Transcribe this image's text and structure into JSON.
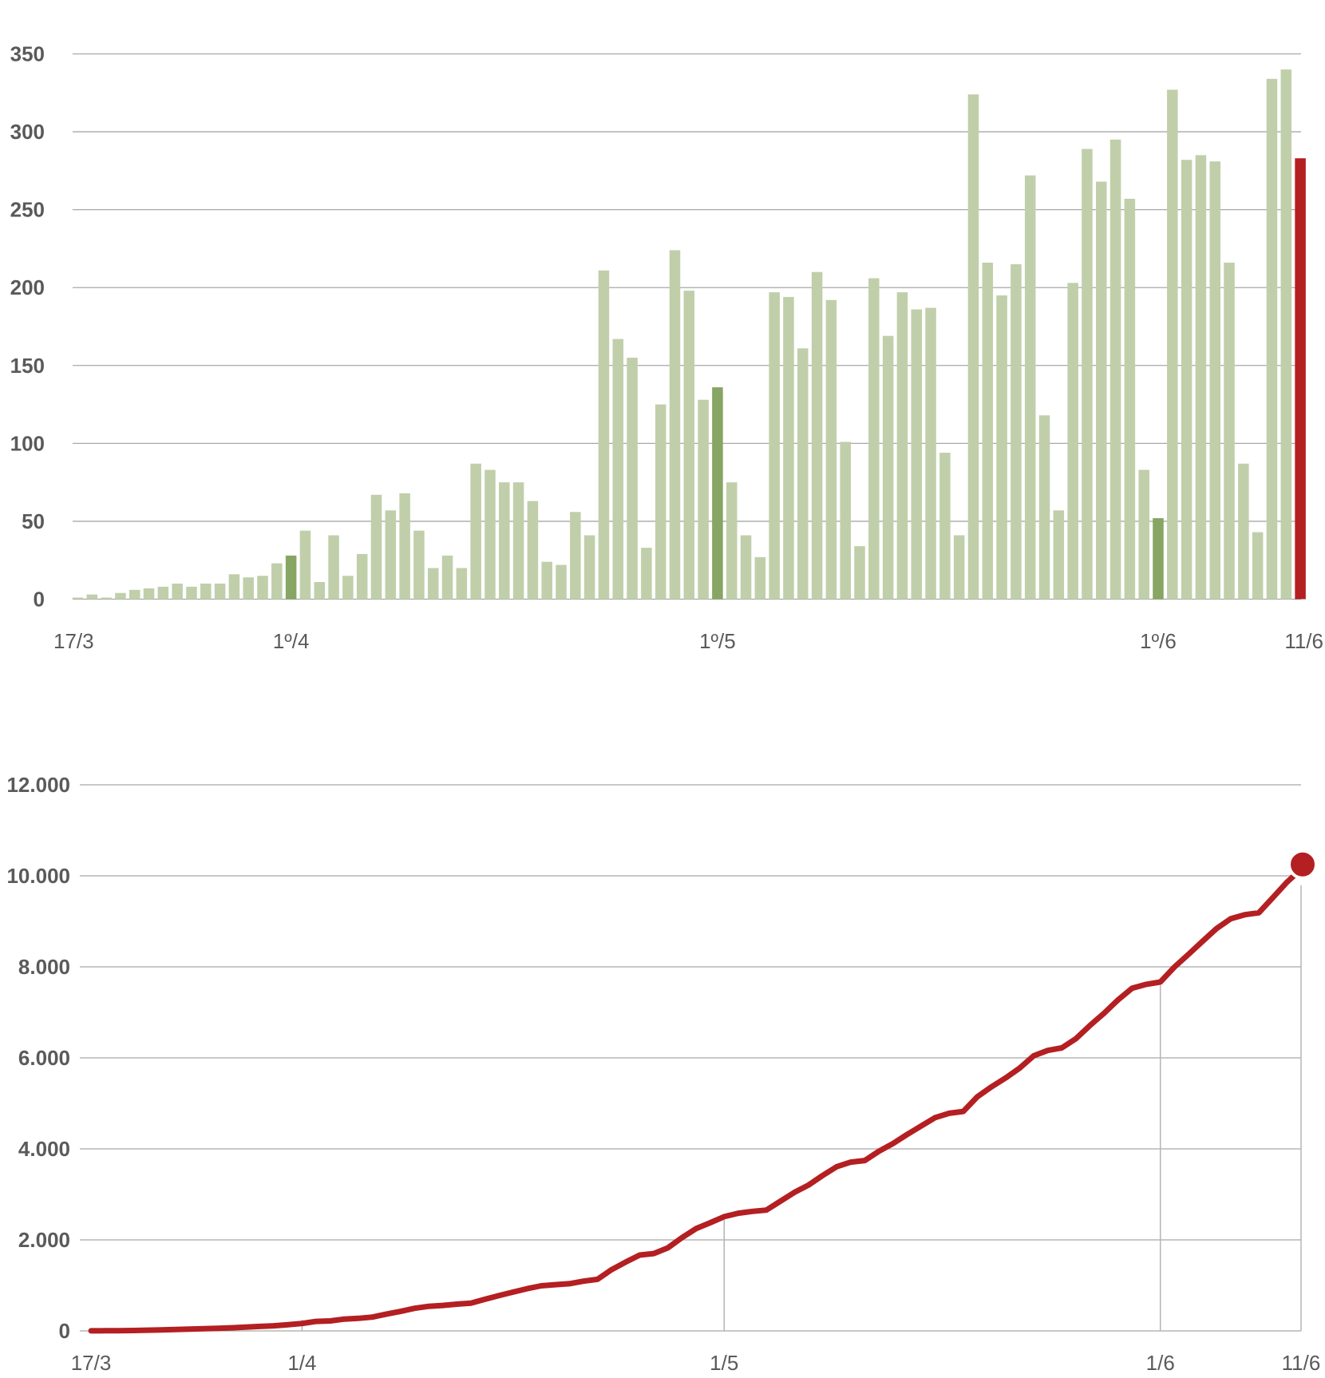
{
  "chart_data": [
    {
      "type": "bar",
      "title": "",
      "xlabel": "",
      "ylabel": "",
      "ylim": [
        0,
        350
      ],
      "yticks": [
        0,
        50,
        100,
        150,
        200,
        250,
        300,
        350
      ],
      "ytick_labels": [
        "0",
        "50",
        "100",
        "150",
        "200",
        "250",
        "300",
        "350"
      ],
      "grid": true,
      "start_date": "17/3",
      "xtick_labels": [
        {
          "label": "17/3",
          "index": 0
        },
        {
          "label": "1º/4",
          "index": 15
        },
        {
          "label": "1º/5",
          "index": 45
        },
        {
          "label": "1º/6",
          "index": 76
        },
        {
          "label": "11/6",
          "index": 86
        }
      ],
      "highlight_indices": [
        15,
        45,
        76
      ],
      "last_index_color": "#b41f22",
      "colors": {
        "bar": "#c0cfaa",
        "highlight": "#87a563",
        "last": "#b41f22",
        "grid": "#a8a8a8",
        "text": "#5a5a5a"
      },
      "values": [
        1,
        3,
        1,
        4,
        6,
        7,
        8,
        10,
        8,
        10,
        10,
        16,
        14,
        15,
        23,
        28,
        44,
        11,
        41,
        15,
        29,
        67,
        57,
        68,
        44,
        20,
        28,
        20,
        87,
        83,
        75,
        75,
        63,
        24,
        22,
        56,
        41,
        211,
        167,
        155,
        33,
        125,
        224,
        198,
        128,
        136,
        75,
        41,
        27,
        197,
        194,
        161,
        210,
        192,
        101,
        34,
        206,
        169,
        197,
        186,
        187,
        94,
        41,
        324,
        216,
        195,
        215,
        272,
        118,
        57,
        203,
        289,
        268,
        295,
        257,
        83,
        52,
        327,
        282,
        285,
        281,
        216,
        87,
        43,
        334,
        340,
        283
      ]
    },
    {
      "type": "line",
      "title": "",
      "xlabel": "",
      "ylabel": "",
      "description_of_values": "cumulative sum of the daily bar values",
      "ylim": [
        0,
        12000
      ],
      "yticks": [
        0,
        2000,
        4000,
        6000,
        8000,
        10000,
        12000
      ],
      "ytick_labels": [
        "0",
        "2.000",
        "4.000",
        "6.000",
        "8.000",
        "10.000",
        "12.000"
      ],
      "grid": true,
      "xtick_labels": [
        {
          "label": "17/3",
          "index": 0
        },
        {
          "label": "1/4",
          "index": 15
        },
        {
          "label": "1/5",
          "index": 45
        },
        {
          "label": "1/6",
          "index": 76
        },
        {
          "label": "11/6",
          "index": 86
        }
      ],
      "end_marker": true,
      "colors": {
        "line": "#b41f22",
        "grid": "#a8a8a8",
        "text": "#5a5a5a"
      }
    }
  ]
}
